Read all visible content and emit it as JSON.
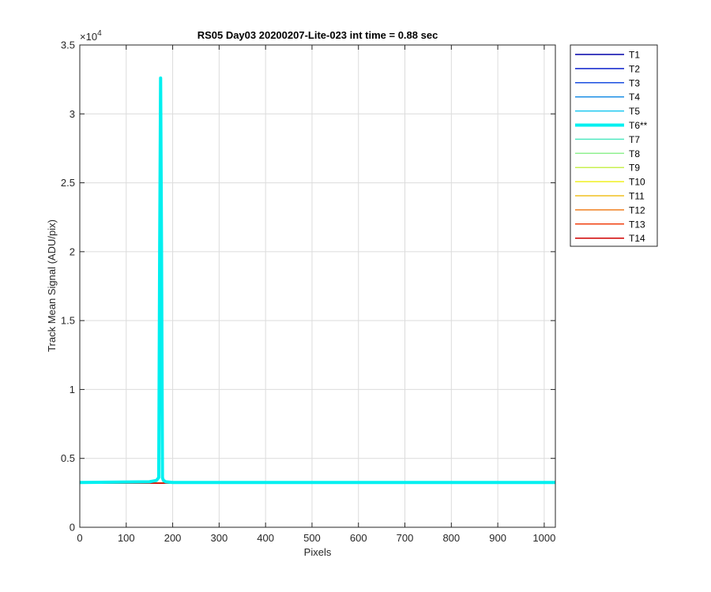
{
  "chart_data": {
    "type": "line",
    "title": "RS05 Day03 20200207-Lite-023 int time = 0.88 sec",
    "xlabel": "Pixels",
    "ylabel": "Track Mean Signal (ADU/pix)",
    "y_exponent_label": "×10",
    "y_exponent_power": "4",
    "xlim": [
      0,
      1024
    ],
    "ylim": [
      0,
      35000
    ],
    "grid": true,
    "legend_placement": "outside-right",
    "x_ticks": [
      0,
      100,
      200,
      300,
      400,
      500,
      600,
      700,
      800,
      900,
      1000
    ],
    "x_tick_labels": [
      "0",
      "100",
      "200",
      "300",
      "400",
      "500",
      "600",
      "700",
      "800",
      "900",
      "1000"
    ],
    "y_ticks": [
      0,
      5000,
      10000,
      15000,
      20000,
      25000,
      30000,
      35000
    ],
    "y_tick_labels": [
      "0",
      "0.5",
      "1",
      "1.5",
      "2",
      "2.5",
      "3",
      "3.5"
    ],
    "series": [
      {
        "name": "T1",
        "color": "#0000aa",
        "width": 1.5,
        "x": [
          0,
          1024
        ],
        "y": [
          3200,
          3200
        ]
      },
      {
        "name": "T2",
        "color": "#0a1fcc",
        "width": 1.5,
        "x": [
          0,
          1024
        ],
        "y": [
          3200,
          3200
        ]
      },
      {
        "name": "T3",
        "color": "#1a4fe0",
        "width": 1.5,
        "x": [
          0,
          1024
        ],
        "y": [
          3200,
          3200
        ]
      },
      {
        "name": "T4",
        "color": "#1e8fe6",
        "width": 1.5,
        "x": [
          0,
          1024
        ],
        "y": [
          3200,
          3200
        ]
      },
      {
        "name": "T5",
        "color": "#1ec8f0",
        "width": 1.5,
        "x": [
          0,
          1024
        ],
        "y": [
          3200,
          3200
        ]
      },
      {
        "name": "T6**",
        "color": "#00f0f0",
        "width": 4,
        "x": [
          0,
          150,
          165,
          170,
          172,
          174,
          176,
          178,
          180,
          185,
          200,
          1024
        ],
        "y": [
          3250,
          3300,
          3400,
          3600,
          20000,
          32600,
          20000,
          3600,
          3400,
          3300,
          3250,
          3250
        ]
      },
      {
        "name": "T7",
        "color": "#50e8c0",
        "width": 1.5,
        "x": [
          0,
          1024
        ],
        "y": [
          3200,
          3200
        ]
      },
      {
        "name": "T8",
        "color": "#90f090",
        "width": 1.5,
        "x": [
          0,
          1024
        ],
        "y": [
          3200,
          3200
        ]
      },
      {
        "name": "T9",
        "color": "#c8f050",
        "width": 1.5,
        "x": [
          0,
          1024
        ],
        "y": [
          3200,
          3200
        ]
      },
      {
        "name": "T10",
        "color": "#f0f020",
        "width": 1.5,
        "x": [
          0,
          1024
        ],
        "y": [
          3200,
          3200
        ]
      },
      {
        "name": "T11",
        "color": "#f0c020",
        "width": 1.5,
        "x": [
          0,
          1024
        ],
        "y": [
          3200,
          3200
        ]
      },
      {
        "name": "T12",
        "color": "#f08020",
        "width": 1.5,
        "x": [
          0,
          1024
        ],
        "y": [
          3200,
          3200
        ]
      },
      {
        "name": "T13",
        "color": "#f04010",
        "width": 1.5,
        "x": [
          0,
          1024
        ],
        "y": [
          3200,
          3200
        ]
      },
      {
        "name": "T14",
        "color": "#d00000",
        "width": 1.5,
        "x": [
          0,
          1024
        ],
        "y": [
          3200,
          3200
        ]
      }
    ]
  }
}
